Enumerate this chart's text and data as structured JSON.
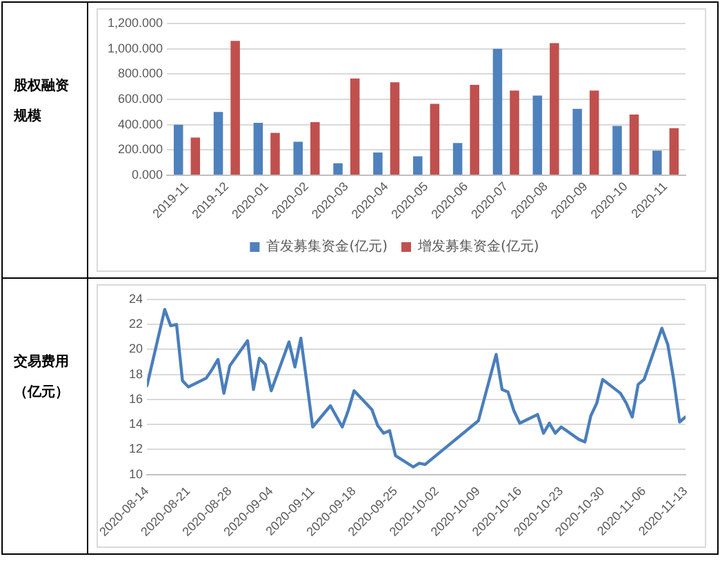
{
  "chart_data": [
    {
      "type": "bar",
      "ylabel": "股权融资规模",
      "categories": [
        "2019-11",
        "2019-12",
        "2020-01",
        "2020-02",
        "2020-03",
        "2020-04",
        "2020-05",
        "2020-06",
        "2020-07",
        "2020-08",
        "2020-09",
        "2020-10",
        "2020-11"
      ],
      "series": [
        {
          "name": "首发募集资金(亿元)",
          "color": "#4f81bd",
          "values": [
            400,
            500,
            415,
            265,
            95,
            180,
            150,
            255,
            1000,
            630,
            525,
            390,
            195
          ]
        },
        {
          "name": "增发募集资金(亿元)",
          "color": "#c0504d",
          "values": [
            298,
            1062,
            335,
            420,
            765,
            735,
            565,
            715,
            670,
            1045,
            670,
            480,
            373
          ]
        }
      ],
      "ylim": [
        0,
        1200
      ],
      "yticks": [
        {
          "value": 0,
          "label": "0.000"
        },
        {
          "value": 200,
          "label": "200.000"
        },
        {
          "value": 400,
          "label": "400.000"
        },
        {
          "value": 600,
          "label": "600.000"
        },
        {
          "value": 800,
          "label": "800.000"
        },
        {
          "value": 1000,
          "label": "1,000.000"
        },
        {
          "value": 1200,
          "label": "1,200.000"
        }
      ],
      "grid": "y",
      "legend": "bottom"
    },
    {
      "type": "line",
      "ylabel": "交易费用（亿元）",
      "x": [
        "2020-08-14",
        "2020-08-17",
        "2020-08-18",
        "2020-08-19",
        "2020-08-20",
        "2020-08-21",
        "2020-08-24",
        "2020-08-25",
        "2020-08-26",
        "2020-08-27",
        "2020-08-28",
        "2020-08-31",
        "2020-09-01",
        "2020-09-02",
        "2020-09-03",
        "2020-09-04",
        "2020-09-07",
        "2020-09-08",
        "2020-09-09",
        "2020-09-10",
        "2020-09-11",
        "2020-09-14",
        "2020-09-16",
        "2020-09-17",
        "2020-09-18",
        "2020-09-21",
        "2020-09-22",
        "2020-09-23",
        "2020-09-24",
        "2020-09-25",
        "2020-09-28",
        "2020-09-29",
        "2020-09-30",
        "2020-10-09",
        "2020-10-12",
        "2020-10-13",
        "2020-10-14",
        "2020-10-15",
        "2020-10-16",
        "2020-10-19",
        "2020-10-20",
        "2020-10-21",
        "2020-10-22",
        "2020-10-23",
        "2020-10-26",
        "2020-10-27",
        "2020-10-28",
        "2020-10-29",
        "2020-10-30",
        "2020-11-02",
        "2020-11-03",
        "2020-11-04",
        "2020-11-05",
        "2020-11-06",
        "2020-11-09",
        "2020-11-10",
        "2020-11-11",
        "2020-11-12",
        "2020-11-13"
      ],
      "series": [
        {
          "color": "#4a7ebb",
          "values": [
            17.1,
            23.2,
            21.9,
            22.0,
            17.5,
            17.0,
            17.7,
            18.4,
            19.2,
            16.5,
            18.7,
            20.7,
            16.8,
            19.3,
            18.8,
            16.7,
            20.6,
            18.6,
            20.9,
            17.4,
            13.8,
            15.5,
            13.8,
            15.1,
            16.7,
            15.2,
            13.9,
            13.3,
            13.5,
            11.5,
            10.6,
            10.9,
            10.8,
            14.3,
            19.6,
            16.8,
            16.6,
            15.1,
            14.1,
            14.8,
            13.3,
            14.1,
            13.3,
            13.8,
            12.8,
            12.6,
            14.7,
            15.7,
            17.6,
            16.5,
            15.7,
            14.6,
            17.2,
            17.6,
            21.7,
            20.4,
            17.6,
            14.2,
            14.6
          ]
        }
      ],
      "xlim": [
        "2020-08-14",
        "2020-11-13"
      ],
      "xticks": [
        "2020-08-14",
        "2020-08-21",
        "2020-08-28",
        "2020-09-04",
        "2020-09-11",
        "2020-09-18",
        "2020-09-25",
        "2020-10-02",
        "2020-10-09",
        "2020-10-16",
        "2020-10-23",
        "2020-10-30",
        "2020-11-06",
        "2020-11-13"
      ],
      "ylim": [
        10,
        24
      ],
      "yticks": [
        10,
        12,
        14,
        16,
        18,
        20,
        22,
        24
      ],
      "grid": "y",
      "legend": false,
      "marker": "none",
      "line_style": "solid"
    }
  ]
}
